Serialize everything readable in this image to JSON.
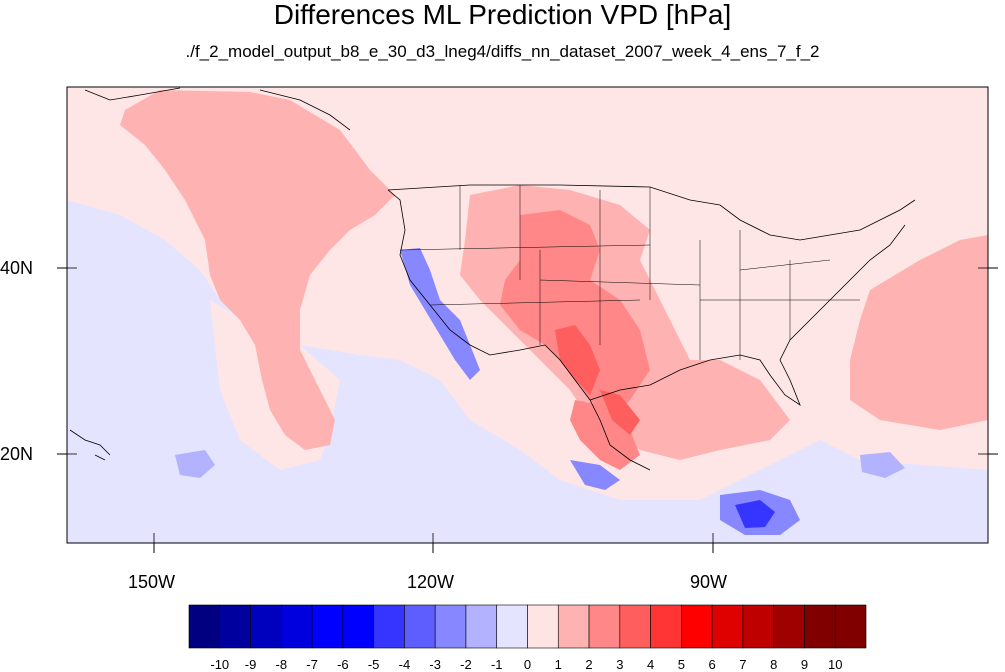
{
  "title": "Differences ML Prediction VPD [hPa]",
  "subtitle": "./f_2_model_output_b8_e_30_d3_lneg4/diffs_nn_dataset_2007_week_4_ens_7_f_2",
  "axes": {
    "x_ticks": [
      {
        "label": "150W",
        "value": -150
      },
      {
        "label": "120W",
        "value": -120
      },
      {
        "label": "90W",
        "value": -90
      }
    ],
    "y_ticks": [
      {
        "label": "40N",
        "value": 40
      },
      {
        "label": "20N",
        "value": 20
      }
    ],
    "lon_range": [
      -159.3,
      -60.3
    ],
    "lat_range": [
      10.3,
      59.3
    ]
  },
  "colorbar": {
    "labels": [
      "-10",
      "-9",
      "-8",
      "-7",
      "-6",
      "-5",
      "-4",
      "-3",
      "-2",
      "-1",
      "0",
      "1",
      "2",
      "3",
      "4",
      "5",
      "6",
      "7",
      "8",
      "9",
      "10"
    ],
    "colors": [
      "#000080",
      "#00009f",
      "#0000bf",
      "#0000df",
      "#0000ff",
      "#0000ff",
      "#3535ff",
      "#5e5eff",
      "#8787ff",
      "#b2b2ff",
      "#e4e4ff",
      "#ffe4e4",
      "#ffb2b2",
      "#ff8787",
      "#ff5e5e",
      "#ff3535",
      "#ff0000",
      "#df0000",
      "#bf0000",
      "#9f0000",
      "#800000",
      "#800000"
    ]
  }
}
